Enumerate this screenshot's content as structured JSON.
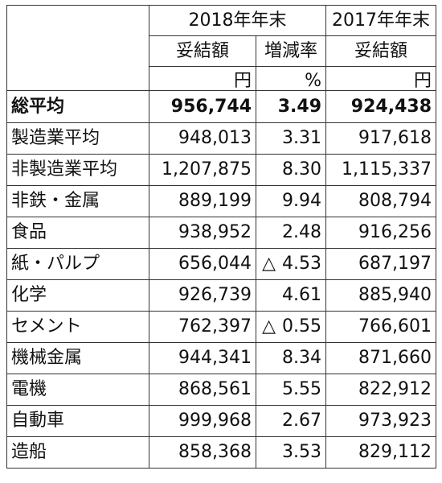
{
  "header": {
    "period_2018": "2018年年末",
    "period_2017": "2017年年末",
    "col_amount_2018": "妥結額",
    "col_change": "増減率",
    "col_amount_2017": "妥結額",
    "unit_yen_2018": "円",
    "unit_percent": "%",
    "unit_yen_2017": "円"
  },
  "total": {
    "label": "総平均",
    "amount_2018": "956,744",
    "change": "3.49",
    "amount_2017": "924,438"
  },
  "groups": [
    {
      "label": "製造業平均",
      "amount_2018": "948,013",
      "change": "3.31",
      "amount_2017": "917,618"
    },
    {
      "label": "非製造業平均",
      "amount_2018": "1,207,875",
      "change": "8.30",
      "amount_2017": "1,115,337"
    }
  ],
  "industries": [
    {
      "label": "非鉄・金属",
      "amount_2018": "889,199",
      "change_prefix": "",
      "change": "9.94",
      "amount_2017": "808,794"
    },
    {
      "label": "食品",
      "amount_2018": "938,952",
      "change_prefix": "",
      "change": "2.48",
      "amount_2017": "916,256"
    },
    {
      "label": "紙・パルプ",
      "amount_2018": "656,044",
      "change_prefix": "△",
      "change": "4.53",
      "amount_2017": "687,197"
    },
    {
      "label": "化学",
      "amount_2018": "926,739",
      "change_prefix": "",
      "change": "4.61",
      "amount_2017": "885,940"
    },
    {
      "label": "セメント",
      "amount_2018": "762,397",
      "change_prefix": "△",
      "change": "0.55",
      "amount_2017": "766,601"
    },
    {
      "label": "機械金属",
      "amount_2018": "944,341",
      "change_prefix": "",
      "change": "8.34",
      "amount_2017": "871,660"
    },
    {
      "label": "電機",
      "amount_2018": "868,561",
      "change_prefix": "",
      "change": "5.55",
      "amount_2017": "822,912"
    },
    {
      "label": "自動車",
      "amount_2018": "999,968",
      "change_prefix": "",
      "change": "2.67",
      "amount_2017": "973,923"
    },
    {
      "label": "造船",
      "amount_2018": "858,368",
      "change_prefix": "",
      "change": "3.53",
      "amount_2017": "829,112"
    }
  ]
}
